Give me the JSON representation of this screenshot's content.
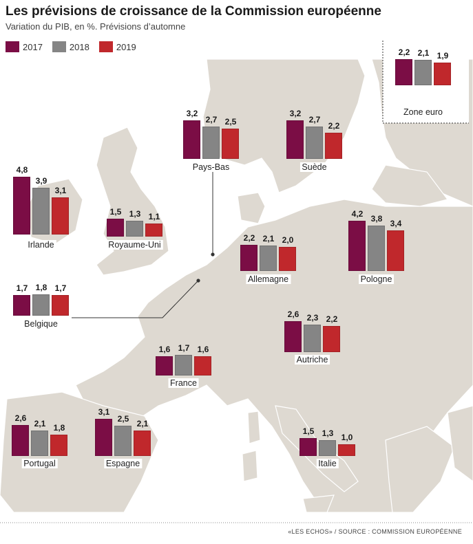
{
  "title": "Les prévisions de croissance de la Commission européenne",
  "subtitle": "Variation du PIB, en %. Prévisions d’automne",
  "source": "«LES ECHOS» / SOURCE : COMMISSION EUROPÉENNE",
  "legend": [
    {
      "label": "2017",
      "color": "#7b0d45"
    },
    {
      "label": "2018",
      "color": "#858585"
    },
    {
      "label": "2019",
      "color": "#c0282c"
    }
  ],
  "chart_data": {
    "type": "bar",
    "categories": [
      "2017",
      "2018",
      "2019"
    ],
    "groups": [
      {
        "name": "Irlande",
        "values": [
          "4,8",
          "3,9",
          "3,1"
        ]
      },
      {
        "name": "Royaume-Uni",
        "values": [
          "1,5",
          "1,3",
          "1,1"
        ]
      },
      {
        "name": "Pays-Bas",
        "values": [
          "3,2",
          "2,7",
          "2,5"
        ]
      },
      {
        "name": "Suède",
        "values": [
          "3,2",
          "2,7",
          "2,2"
        ]
      },
      {
        "name": "Zone euro",
        "values": [
          "2,2",
          "2,1",
          "1,9"
        ]
      },
      {
        "name": "Allemagne",
        "values": [
          "2,2",
          "2,1",
          "2,0"
        ]
      },
      {
        "name": "Pologne",
        "values": [
          "4,2",
          "3,8",
          "3,4"
        ]
      },
      {
        "name": "Belgique",
        "values": [
          "1,7",
          "1,8",
          "1,7"
        ]
      },
      {
        "name": "Autriche",
        "values": [
          "2,6",
          "2,3",
          "2,2"
        ]
      },
      {
        "name": "France",
        "values": [
          "1,6",
          "1,7",
          "1,6"
        ]
      },
      {
        "name": "Portugal",
        "values": [
          "2,6",
          "2,1",
          "1,8"
        ]
      },
      {
        "name": "Espagne",
        "values": [
          "3,1",
          "2,5",
          "2,1"
        ]
      },
      {
        "name": "Italie",
        "values": [
          "1,5",
          "1,3",
          "1,0"
        ]
      }
    ]
  }
}
